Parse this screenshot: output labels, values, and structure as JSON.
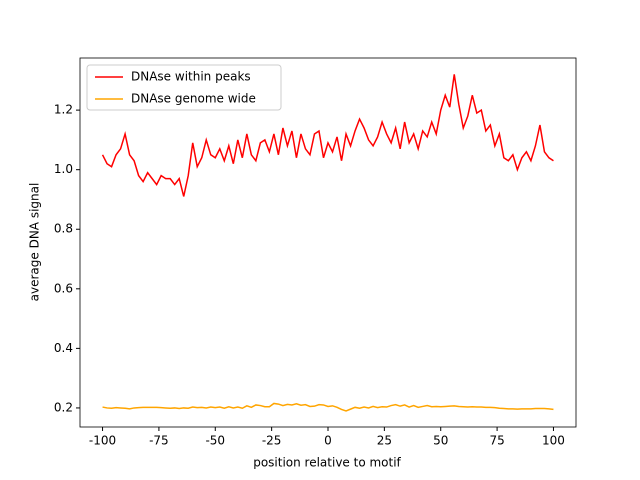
{
  "chart_data": {
    "type": "line",
    "xlabel": "position relative to motif",
    "ylabel": "average DNA signal",
    "x": [
      -100,
      -98,
      -96,
      -94,
      -92,
      -90,
      -88,
      -86,
      -84,
      -82,
      -80,
      -78,
      -76,
      -74,
      -72,
      -70,
      -68,
      -66,
      -64,
      -62,
      -60,
      -58,
      -56,
      -54,
      -52,
      -50,
      -48,
      -46,
      -44,
      -42,
      -40,
      -38,
      -36,
      -34,
      -32,
      -30,
      -28,
      -26,
      -24,
      -22,
      -20,
      -18,
      -16,
      -14,
      -12,
      -10,
      -8,
      -6,
      -4,
      -2,
      0,
      2,
      4,
      6,
      8,
      10,
      12,
      14,
      16,
      18,
      20,
      22,
      24,
      26,
      28,
      30,
      32,
      34,
      36,
      38,
      40,
      42,
      44,
      46,
      48,
      50,
      52,
      54,
      56,
      58,
      60,
      62,
      64,
      66,
      68,
      70,
      72,
      74,
      76,
      78,
      80,
      82,
      84,
      86,
      88,
      90,
      92,
      94,
      96,
      98,
      100
    ],
    "series": [
      {
        "name": "DNAse within peaks",
        "color": "#ff0000",
        "values": [
          1.05,
          1.02,
          1.01,
          1.05,
          1.07,
          1.12,
          1.05,
          1.03,
          0.98,
          0.96,
          0.99,
          0.97,
          0.95,
          0.98,
          0.97,
          0.97,
          0.95,
          0.97,
          0.91,
          0.98,
          1.09,
          1.01,
          1.04,
          1.1,
          1.05,
          1.04,
          1.07,
          1.03,
          1.08,
          1.02,
          1.1,
          1.04,
          1.12,
          1.05,
          1.03,
          1.09,
          1.1,
          1.06,
          1.12,
          1.05,
          1.14,
          1.08,
          1.13,
          1.04,
          1.12,
          1.07,
          1.05,
          1.12,
          1.13,
          1.04,
          1.09,
          1.06,
          1.11,
          1.03,
          1.12,
          1.08,
          1.13,
          1.17,
          1.14,
          1.1,
          1.08,
          1.11,
          1.16,
          1.12,
          1.09,
          1.14,
          1.07,
          1.16,
          1.09,
          1.12,
          1.07,
          1.13,
          1.11,
          1.16,
          1.12,
          1.2,
          1.25,
          1.21,
          1.32,
          1.22,
          1.14,
          1.18,
          1.25,
          1.19,
          1.2,
          1.13,
          1.15,
          1.08,
          1.12,
          1.04,
          1.03,
          1.05,
          1.0,
          1.04,
          1.06,
          1.03,
          1.08,
          1.15,
          1.06,
          1.04,
          1.03
        ]
      },
      {
        "name": "DNAse genome wide",
        "color": "#ffa500",
        "values": [
          0.203,
          0.2,
          0.199,
          0.201,
          0.2,
          0.199,
          0.197,
          0.2,
          0.201,
          0.202,
          0.202,
          0.202,
          0.202,
          0.201,
          0.2,
          0.199,
          0.2,
          0.198,
          0.2,
          0.199,
          0.203,
          0.201,
          0.202,
          0.2,
          0.203,
          0.201,
          0.203,
          0.199,
          0.204,
          0.2,
          0.203,
          0.199,
          0.207,
          0.202,
          0.21,
          0.208,
          0.204,
          0.204,
          0.215,
          0.213,
          0.208,
          0.212,
          0.21,
          0.214,
          0.209,
          0.211,
          0.205,
          0.206,
          0.211,
          0.21,
          0.205,
          0.207,
          0.202,
          0.195,
          0.19,
          0.196,
          0.202,
          0.199,
          0.203,
          0.2,
          0.205,
          0.201,
          0.204,
          0.203,
          0.208,
          0.211,
          0.206,
          0.21,
          0.203,
          0.208,
          0.202,
          0.205,
          0.208,
          0.204,
          0.205,
          0.204,
          0.205,
          0.206,
          0.207,
          0.205,
          0.204,
          0.203,
          0.204,
          0.203,
          0.203,
          0.202,
          0.202,
          0.201,
          0.199,
          0.198,
          0.197,
          0.197,
          0.196,
          0.197,
          0.197,
          0.197,
          0.198,
          0.198,
          0.198,
          0.197,
          0.195
        ]
      }
    ],
    "xlim": [
      -110,
      110
    ],
    "ylim": [
      0.136,
      1.375
    ],
    "xticks": [
      -100,
      -75,
      -50,
      -25,
      0,
      25,
      50,
      75,
      100
    ],
    "yticks": [
      0.2,
      0.4,
      0.6,
      0.8,
      {
        "value": 1,
        "label": "1.0"
      },
      1.2
    ],
    "legend": "upper left"
  }
}
